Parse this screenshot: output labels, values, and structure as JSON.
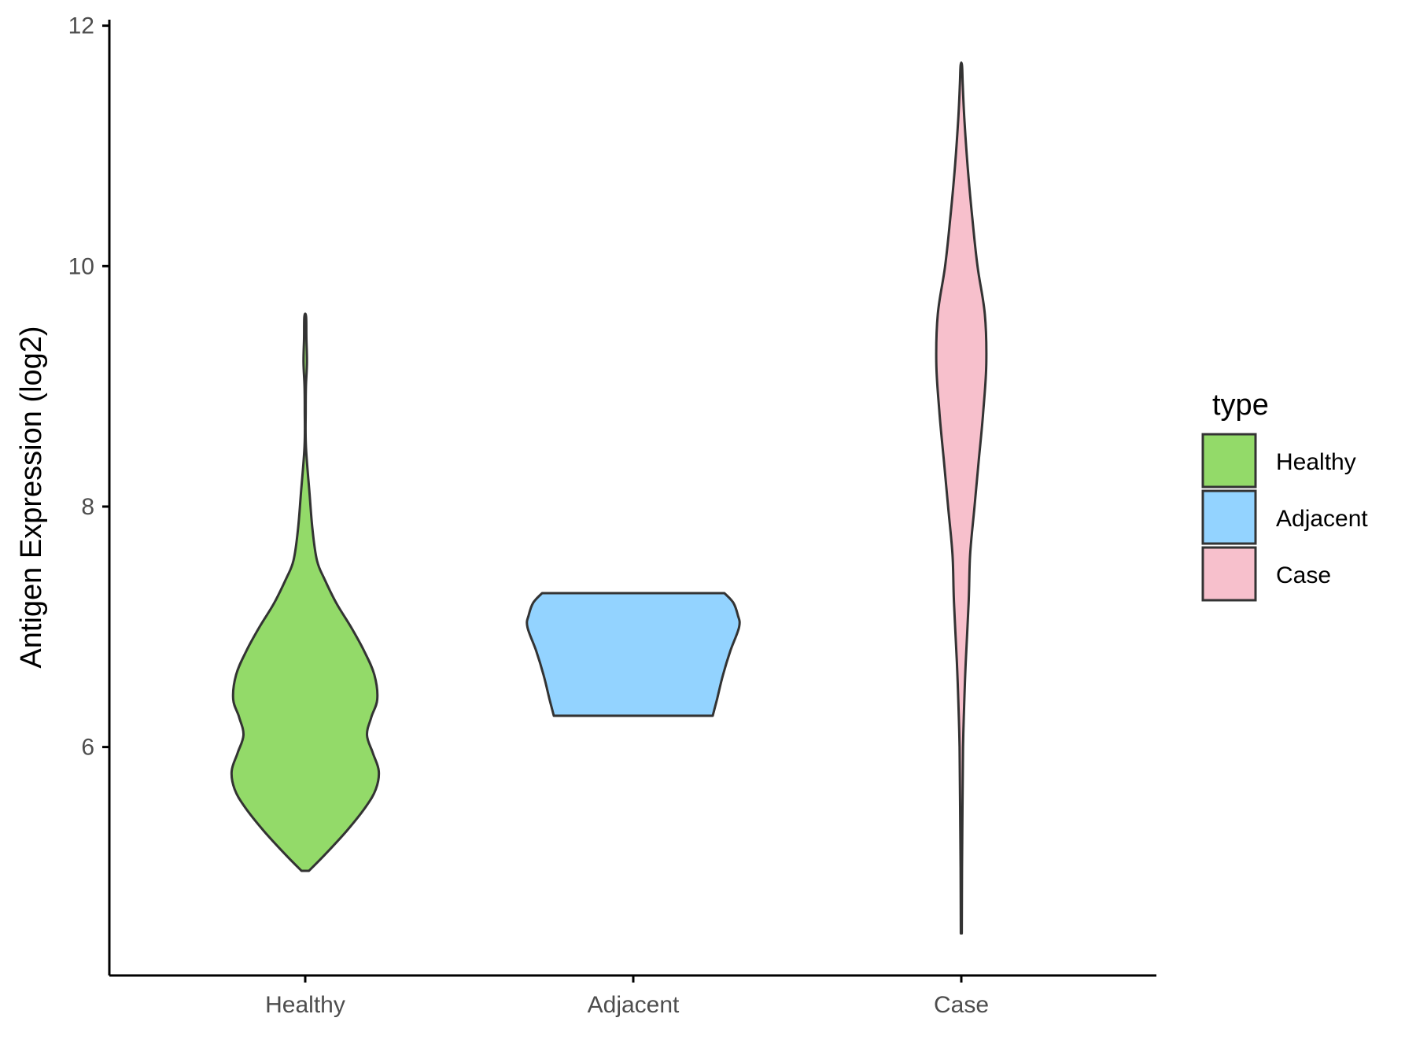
{
  "chart_data": {
    "type": "violin",
    "ylabel": "Antigen Expression (log2)",
    "xlabel": "",
    "ylim": [
      4.1,
      12.05
    ],
    "yticks": [
      6,
      8,
      10,
      12
    ],
    "categories": [
      "Healthy",
      "Adjacent",
      "Case"
    ],
    "grid": false,
    "legend": {
      "title": "type",
      "position": "right",
      "entries": [
        "Healthy",
        "Adjacent",
        "Case"
      ]
    },
    "colors": {
      "Healthy": "#93DA69",
      "Adjacent": "#93D3FF",
      "Case": "#F7C0CC",
      "outline": "#333333"
    },
    "series": [
      {
        "category": "Healthy",
        "density": [
          [
            4.97,
            0.025
          ],
          [
            5.1,
            0.13
          ],
          [
            5.3,
            0.28
          ],
          [
            5.5,
            0.41
          ],
          [
            5.65,
            0.48
          ],
          [
            5.8,
            0.5
          ],
          [
            5.95,
            0.46
          ],
          [
            6.1,
            0.42
          ],
          [
            6.25,
            0.45
          ],
          [
            6.4,
            0.49
          ],
          [
            6.6,
            0.47
          ],
          [
            6.8,
            0.4
          ],
          [
            7.0,
            0.31
          ],
          [
            7.2,
            0.21
          ],
          [
            7.4,
            0.13
          ],
          [
            7.55,
            0.08
          ],
          [
            7.8,
            0.05
          ],
          [
            8.1,
            0.03
          ],
          [
            8.5,
            0.005
          ],
          [
            8.8,
            0.003
          ],
          [
            9.0,
            0.005
          ],
          [
            9.2,
            0.012
          ],
          [
            9.4,
            0.008
          ],
          [
            9.58,
            0.006
          ]
        ]
      },
      {
        "category": "Adjacent",
        "density": [
          [
            6.26,
            0.54
          ],
          [
            6.4,
            0.57
          ],
          [
            6.6,
            0.61
          ],
          [
            6.8,
            0.66
          ],
          [
            7.0,
            0.72
          ],
          [
            7.1,
            0.71
          ],
          [
            7.2,
            0.68
          ],
          [
            7.28,
            0.62
          ]
        ]
      },
      {
        "category": "Case",
        "density": [
          [
            4.45,
            0.003
          ],
          [
            5.0,
            0.005
          ],
          [
            5.5,
            0.008
          ],
          [
            6.0,
            0.012
          ],
          [
            6.3,
            0.018
          ],
          [
            6.7,
            0.03
          ],
          [
            7.2,
            0.05
          ],
          [
            7.6,
            0.06
          ],
          [
            8.0,
            0.09
          ],
          [
            8.4,
            0.12
          ],
          [
            8.8,
            0.15
          ],
          [
            9.2,
            0.17
          ],
          [
            9.6,
            0.16
          ],
          [
            10.0,
            0.11
          ],
          [
            10.4,
            0.075
          ],
          [
            10.8,
            0.045
          ],
          [
            11.2,
            0.022
          ],
          [
            11.5,
            0.01
          ],
          [
            11.67,
            0.005
          ]
        ]
      }
    ]
  }
}
